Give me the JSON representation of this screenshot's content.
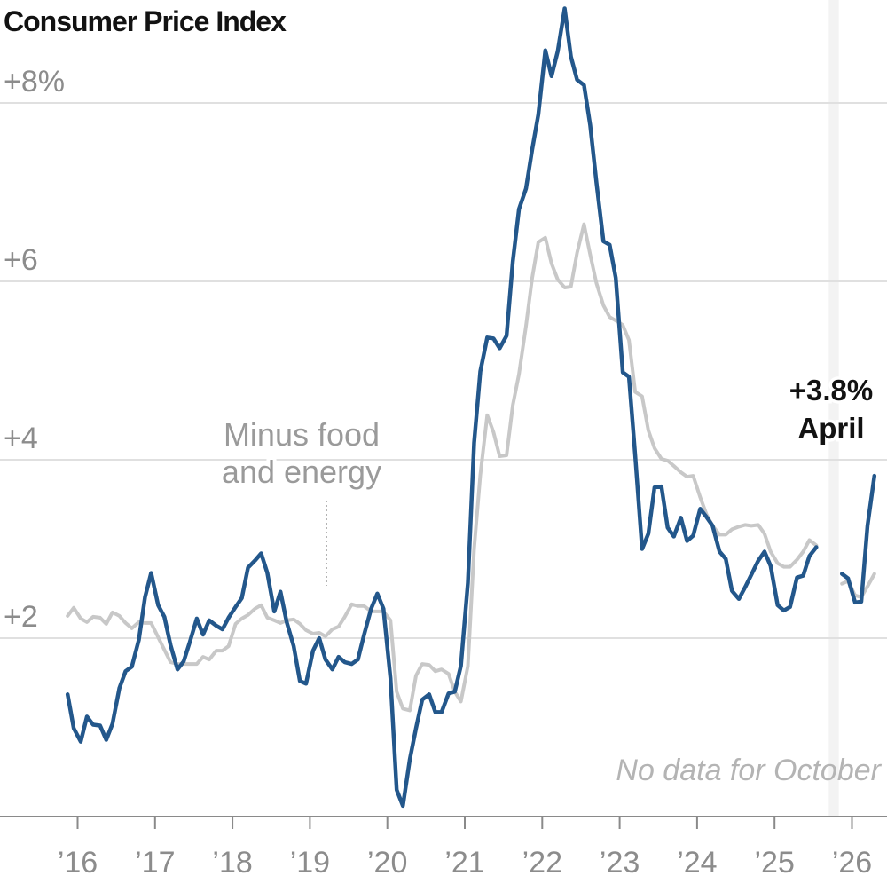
{
  "chart_data": {
    "type": "line",
    "title": "Consumer Price Index",
    "ylim": [
      0,
      8.4
    ],
    "y_ticks": [
      {
        "value": 2,
        "label": "+2"
      },
      {
        "value": 4,
        "label": "+4"
      },
      {
        "value": 6,
        "label": "+6"
      },
      {
        "value": 8,
        "label": "+8%"
      }
    ],
    "x_range": [
      2015.75,
      2026.5
    ],
    "x_ticks": [
      {
        "value": 2016,
        "label": "’16"
      },
      {
        "value": 2017,
        "label": "’17"
      },
      {
        "value": 2018,
        "label": "’18"
      },
      {
        "value": 2019,
        "label": "’19"
      },
      {
        "value": 2020,
        "label": "’20"
      },
      {
        "value": 2021,
        "label": "’21"
      },
      {
        "value": 2022,
        "label": "’22"
      },
      {
        "value": 2023,
        "label": "’23"
      },
      {
        "value": 2024,
        "label": "’24"
      },
      {
        "value": 2025,
        "label": "’25"
      },
      {
        "value": 2026,
        "label": "’26"
      }
    ],
    "grid": true,
    "gap_band": {
      "x0": 2025.7,
      "x1": 2025.83,
      "label": "No data for October"
    },
    "series": [
      {
        "key": "all_items",
        "color": "#23578b",
        "segments": [
          [
            [
              2015.87,
              1.37
            ],
            [
              2015.95,
              0.99
            ],
            [
              2016.04,
              0.84
            ],
            [
              2016.12,
              1.12
            ],
            [
              2016.2,
              1.03
            ],
            [
              2016.29,
              1.02
            ],
            [
              2016.37,
              0.86
            ],
            [
              2016.45,
              1.04
            ],
            [
              2016.54,
              1.44
            ],
            [
              2016.62,
              1.63
            ],
            [
              2016.7,
              1.68
            ],
            [
              2016.79,
              1.98
            ],
            [
              2016.87,
              2.46
            ],
            [
              2016.95,
              2.73
            ],
            [
              2017.04,
              2.37
            ],
            [
              2017.12,
              2.24
            ],
            [
              2017.2,
              1.92
            ],
            [
              2017.29,
              1.65
            ],
            [
              2017.37,
              1.74
            ],
            [
              2017.45,
              1.96
            ],
            [
              2017.54,
              2.22
            ],
            [
              2017.62,
              2.04
            ],
            [
              2017.7,
              2.2
            ],
            [
              2017.79,
              2.14
            ],
            [
              2017.87,
              2.1
            ],
            [
              2017.95,
              2.23
            ],
            [
              2018.04,
              2.35
            ],
            [
              2018.12,
              2.45
            ],
            [
              2018.2,
              2.79
            ],
            [
              2018.29,
              2.87
            ],
            [
              2018.37,
              2.95
            ],
            [
              2018.45,
              2.73
            ],
            [
              2018.54,
              2.3
            ],
            [
              2018.62,
              2.52
            ],
            [
              2018.7,
              2.18
            ],
            [
              2018.79,
              1.91
            ],
            [
              2018.87,
              1.52
            ],
            [
              2018.95,
              1.49
            ],
            [
              2019.04,
              1.86
            ],
            [
              2019.12,
              2.0
            ],
            [
              2019.2,
              1.76
            ],
            [
              2019.29,
              1.65
            ],
            [
              2019.37,
              1.79
            ],
            [
              2019.45,
              1.73
            ],
            [
              2019.54,
              1.71
            ],
            [
              2019.62,
              1.76
            ],
            [
              2019.7,
              2.04
            ],
            [
              2019.79,
              2.33
            ],
            [
              2019.87,
              2.5
            ],
            [
              2019.95,
              2.33
            ],
            [
              2020.04,
              1.55
            ],
            [
              2020.12,
              0.3
            ],
            [
              2020.2,
              0.12
            ],
            [
              2020.29,
              0.64
            ],
            [
              2020.37,
              0.99
            ],
            [
              2020.45,
              1.31
            ],
            [
              2020.54,
              1.37
            ],
            [
              2020.62,
              1.17
            ],
            [
              2020.7,
              1.17
            ],
            [
              2020.79,
              1.38
            ],
            [
              2020.87,
              1.4
            ],
            [
              2020.95,
              1.69
            ],
            [
              2021.04,
              2.62
            ],
            [
              2021.12,
              4.19
            ],
            [
              2021.2,
              4.99
            ],
            [
              2021.29,
              5.37
            ],
            [
              2021.37,
              5.36
            ],
            [
              2021.45,
              5.25
            ],
            [
              2021.54,
              5.39
            ],
            [
              2021.62,
              6.22
            ],
            [
              2021.7,
              6.81
            ],
            [
              2021.79,
              7.04
            ],
            [
              2021.87,
              7.48
            ],
            [
              2021.95,
              7.87
            ],
            [
              2022.04,
              8.59
            ],
            [
              2022.12,
              8.3
            ],
            [
              2022.2,
              8.58
            ],
            [
              2022.29,
              9.06
            ],
            [
              2022.37,
              8.52
            ],
            [
              2022.45,
              8.26
            ],
            [
              2022.54,
              8.2
            ],
            [
              2022.62,
              7.75
            ],
            [
              2022.7,
              7.11
            ],
            [
              2022.79,
              6.45
            ],
            [
              2022.87,
              6.41
            ],
            [
              2022.95,
              6.04
            ],
            [
              2023.04,
              4.98
            ],
            [
              2023.12,
              4.93
            ],
            [
              2023.2,
              4.05
            ],
            [
              2023.29,
              3.0
            ],
            [
              2023.37,
              3.17
            ],
            [
              2023.45,
              3.69
            ],
            [
              2023.54,
              3.7
            ],
            [
              2023.62,
              3.24
            ],
            [
              2023.7,
              3.14
            ],
            [
              2023.79,
              3.35
            ],
            [
              2023.87,
              3.09
            ],
            [
              2023.95,
              3.15
            ],
            [
              2024.04,
              3.45
            ],
            [
              2024.12,
              3.36
            ],
            [
              2024.2,
              3.26
            ],
            [
              2024.29,
              2.97
            ],
            [
              2024.37,
              2.89
            ],
            [
              2024.45,
              2.53
            ],
            [
              2024.54,
              2.44
            ],
            [
              2024.62,
              2.57
            ],
            [
              2024.7,
              2.71
            ],
            [
              2024.79,
              2.87
            ],
            [
              2024.87,
              2.97
            ],
            [
              2024.95,
              2.81
            ],
            [
              2025.04,
              2.37
            ],
            [
              2025.12,
              2.31
            ],
            [
              2025.2,
              2.35
            ],
            [
              2025.29,
              2.68
            ],
            [
              2025.37,
              2.7
            ],
            [
              2025.45,
              2.92
            ],
            [
              2025.54,
              3.02
            ]
          ],
          [
            [
              2025.87,
              2.72
            ],
            [
              2025.95,
              2.67
            ],
            [
              2026.04,
              2.4
            ],
            [
              2026.12,
              2.41
            ],
            [
              2026.2,
              3.26
            ],
            [
              2026.29,
              3.82
            ]
          ]
        ]
      },
      {
        "key": "core",
        "label": "Minus food and energy",
        "color": "#c8c8c8",
        "segments": [
          [
            [
              2015.87,
              2.25
            ],
            [
              2015.95,
              2.34
            ],
            [
              2016.04,
              2.22
            ],
            [
              2016.12,
              2.18
            ],
            [
              2016.2,
              2.24
            ],
            [
              2016.29,
              2.23
            ],
            [
              2016.37,
              2.16
            ],
            [
              2016.45,
              2.29
            ],
            [
              2016.54,
              2.25
            ],
            [
              2016.62,
              2.17
            ],
            [
              2016.7,
              2.11
            ],
            [
              2016.79,
              2.18
            ],
            [
              2016.87,
              2.17
            ],
            [
              2016.95,
              2.17
            ],
            [
              2017.04,
              2.01
            ],
            [
              2017.12,
              1.87
            ],
            [
              2017.2,
              1.73
            ],
            [
              2017.29,
              1.71
            ],
            [
              2017.37,
              1.71
            ],
            [
              2017.45,
              1.71
            ],
            [
              2017.54,
              1.71
            ],
            [
              2017.62,
              1.79
            ],
            [
              2017.7,
              1.76
            ],
            [
              2017.79,
              1.86
            ],
            [
              2017.87,
              1.86
            ],
            [
              2017.95,
              1.91
            ],
            [
              2018.04,
              2.16
            ],
            [
              2018.12,
              2.22
            ],
            [
              2018.2,
              2.26
            ],
            [
              2018.29,
              2.33
            ],
            [
              2018.37,
              2.37
            ],
            [
              2018.45,
              2.23
            ],
            [
              2018.54,
              2.2
            ],
            [
              2018.62,
              2.17
            ],
            [
              2018.7,
              2.2
            ],
            [
              2018.79,
              2.21
            ],
            [
              2018.87,
              2.16
            ],
            [
              2018.95,
              2.09
            ],
            [
              2019.04,
              2.05
            ],
            [
              2019.12,
              2.06
            ],
            [
              2019.2,
              2.02
            ],
            [
              2019.29,
              2.1
            ],
            [
              2019.37,
              2.13
            ],
            [
              2019.45,
              2.24
            ],
            [
              2019.54,
              2.38
            ],
            [
              2019.62,
              2.36
            ],
            [
              2019.7,
              2.36
            ],
            [
              2019.79,
              2.3
            ],
            [
              2019.87,
              2.3
            ],
            [
              2019.95,
              2.3
            ],
            [
              2020.04,
              2.2
            ],
            [
              2020.12,
              1.4
            ],
            [
              2020.2,
              1.21
            ],
            [
              2020.29,
              1.19
            ],
            [
              2020.37,
              1.58
            ],
            [
              2020.45,
              1.71
            ],
            [
              2020.54,
              1.7
            ],
            [
              2020.62,
              1.63
            ],
            [
              2020.7,
              1.65
            ],
            [
              2020.79,
              1.6
            ],
            [
              2020.87,
              1.4
            ],
            [
              2020.95,
              1.29
            ],
            [
              2021.04,
              1.69
            ],
            [
              2021.12,
              3.0
            ],
            [
              2021.2,
              3.83
            ],
            [
              2021.29,
              4.5
            ],
            [
              2021.37,
              4.31
            ],
            [
              2021.45,
              4.04
            ],
            [
              2021.54,
              4.05
            ],
            [
              2021.62,
              4.61
            ],
            [
              2021.7,
              4.96
            ],
            [
              2021.79,
              5.5
            ],
            [
              2021.87,
              6.04
            ],
            [
              2021.95,
              6.44
            ],
            [
              2022.04,
              6.49
            ],
            [
              2022.12,
              6.2
            ],
            [
              2022.2,
              6.02
            ],
            [
              2022.29,
              5.93
            ],
            [
              2022.37,
              5.94
            ],
            [
              2022.45,
              6.32
            ],
            [
              2022.54,
              6.64
            ],
            [
              2022.62,
              6.3
            ],
            [
              2022.7,
              5.98
            ],
            [
              2022.79,
              5.73
            ],
            [
              2022.87,
              5.6
            ],
            [
              2022.95,
              5.56
            ],
            [
              2023.04,
              5.51
            ],
            [
              2023.12,
              5.34
            ],
            [
              2023.2,
              4.76
            ],
            [
              2023.29,
              4.71
            ],
            [
              2023.37,
              4.33
            ],
            [
              2023.45,
              4.13
            ],
            [
              2023.54,
              4.01
            ],
            [
              2023.62,
              3.99
            ],
            [
              2023.7,
              3.93
            ],
            [
              2023.79,
              3.86
            ],
            [
              2023.87,
              3.81
            ],
            [
              2023.95,
              3.82
            ],
            [
              2024.04,
              3.58
            ],
            [
              2024.12,
              3.39
            ],
            [
              2024.2,
              3.26
            ],
            [
              2024.29,
              3.16
            ],
            [
              2024.37,
              3.16
            ],
            [
              2024.45,
              3.22
            ],
            [
              2024.54,
              3.25
            ],
            [
              2024.62,
              3.27
            ],
            [
              2024.7,
              3.26
            ],
            [
              2024.79,
              3.27
            ],
            [
              2024.87,
              3.17
            ],
            [
              2024.95,
              2.97
            ],
            [
              2025.04,
              2.84
            ],
            [
              2025.12,
              2.8
            ],
            [
              2025.2,
              2.8
            ],
            [
              2025.29,
              2.88
            ],
            [
              2025.37,
              2.97
            ],
            [
              2025.45,
              3.1
            ],
            [
              2025.54,
              3.04
            ]
          ],
          [
            [
              2025.87,
              2.61
            ],
            [
              2025.95,
              2.64
            ],
            [
              2026.04,
              2.48
            ],
            [
              2026.12,
              2.46
            ],
            [
              2026.2,
              2.58
            ],
            [
              2026.29,
              2.72
            ]
          ]
        ]
      }
    ],
    "annotations": {
      "series_label_lines": [
        "Minus food",
        "and energy"
      ],
      "callout_value": "+3.8%",
      "callout_period": "April",
      "note": "No data for October"
    }
  }
}
